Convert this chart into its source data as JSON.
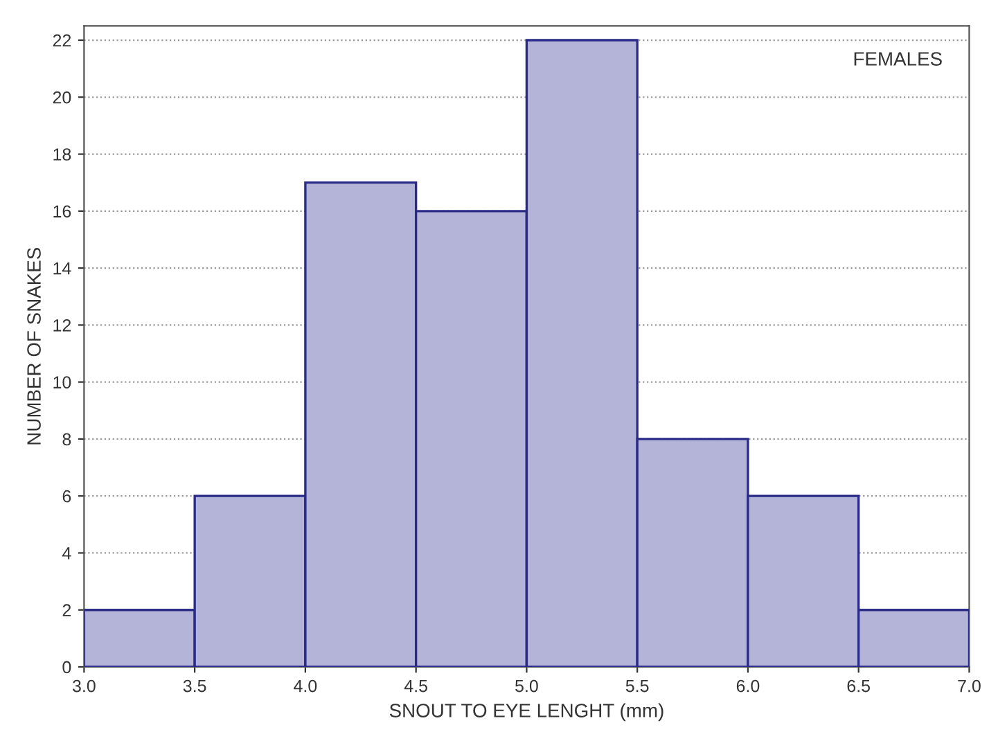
{
  "chart_data": {
    "type": "histogram",
    "bins": [
      3.0,
      3.5,
      4.0,
      4.5,
      5.0,
      5.5,
      6.0,
      6.5,
      7.0
    ],
    "values": [
      2,
      6,
      17,
      16,
      22,
      8,
      6,
      2
    ],
    "color": "#b4b4d8",
    "xlabel": "SNOUT TO EYE LENGHT (mm)",
    "ylabel": "NUMBER OF SNAKES",
    "annotations": [
      "FEMALES"
    ],
    "xlim": [
      3.0,
      7.0
    ],
    "xticks": [
      {
        "value": 3.0,
        "label": "3.0"
      },
      {
        "value": 3.5,
        "label": "3.5"
      },
      {
        "value": 4.0,
        "label": "4.0"
      },
      {
        "value": 4.5,
        "label": "4.5"
      },
      {
        "value": 5.0,
        "label": "5.0"
      },
      {
        "value": 5.5,
        "label": "5.5"
      },
      {
        "value": 6.0,
        "label": "6.0"
      },
      {
        "value": 6.5,
        "label": "6.5"
      },
      {
        "value": 7.0,
        "label": "7.0"
      }
    ],
    "ylim": [
      0,
      22.5
    ],
    "yticks": [
      0,
      2,
      4,
      6,
      8,
      10,
      12,
      14,
      16,
      18,
      20,
      22
    ],
    "grid": "y"
  }
}
